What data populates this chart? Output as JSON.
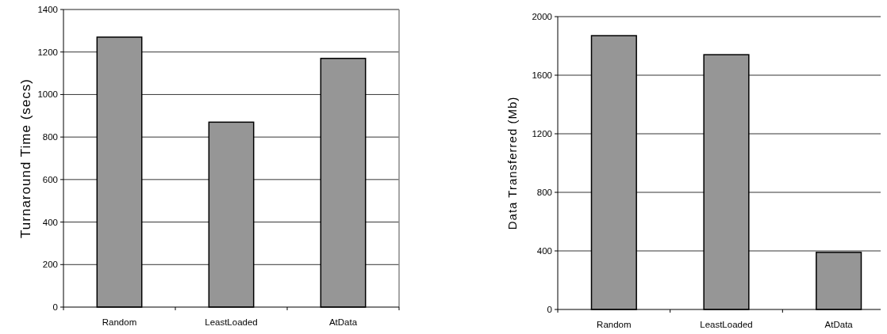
{
  "chart_data": [
    {
      "type": "bar",
      "ylabel": "Turnaround Time (secs)",
      "categories": [
        "Random",
        "LeastLoaded",
        "AtData"
      ],
      "values": [
        1270,
        870,
        1170
      ],
      "color": "#969696",
      "ylim": [
        0,
        1400
      ],
      "yticks": [
        0,
        200,
        400,
        600,
        800,
        1000,
        1200,
        1400
      ],
      "grid": "y"
    },
    {
      "type": "bar",
      "ylabel": "Data Transferred (Mb)",
      "categories": [
        "Random",
        "LeastLoaded",
        "AtData"
      ],
      "values": [
        1870,
        1740,
        390
      ],
      "color": "#969696",
      "ylim": [
        0,
        2000
      ],
      "yticks": [
        0,
        400,
        800,
        1200,
        1600,
        2000
      ],
      "grid": "y"
    }
  ]
}
